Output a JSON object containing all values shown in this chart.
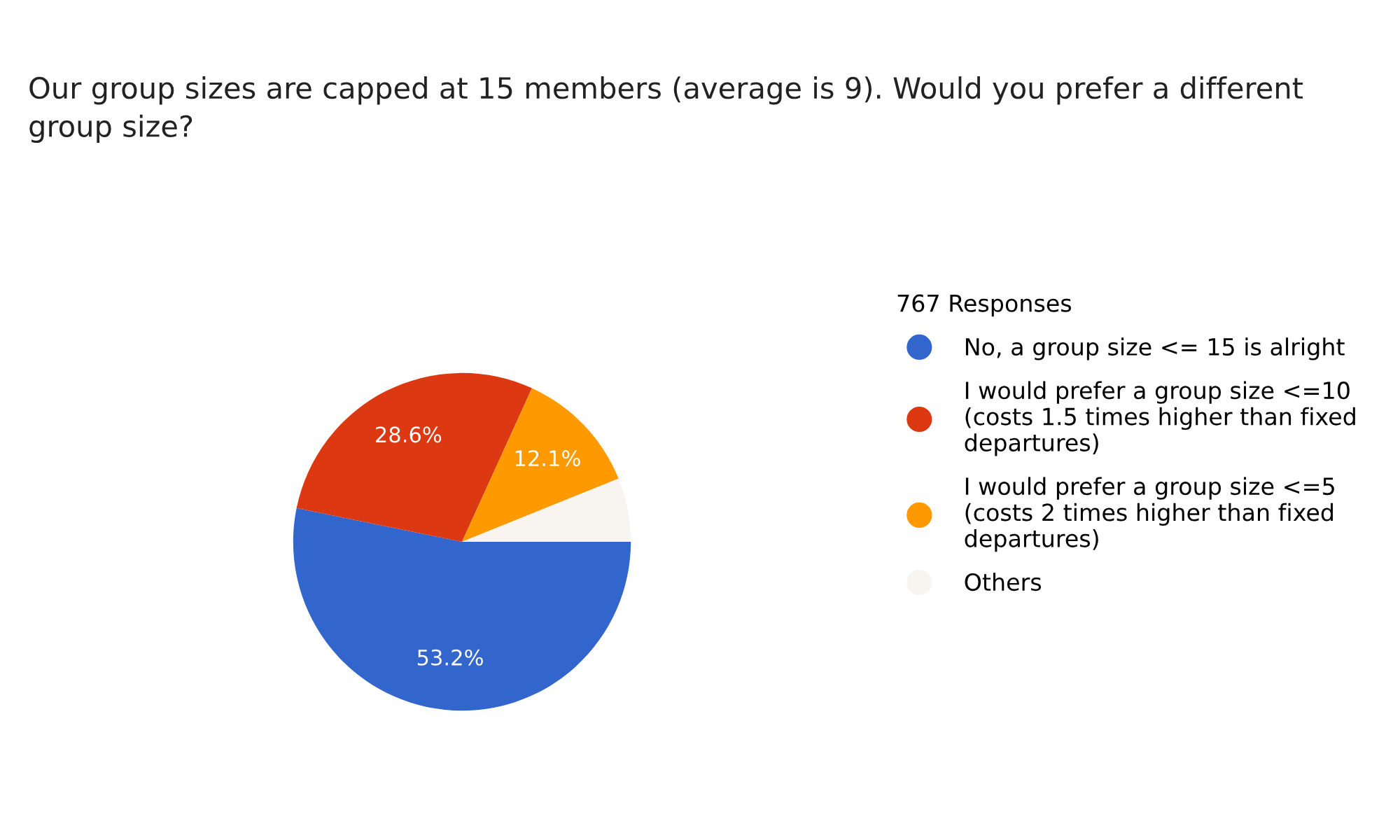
{
  "chart_data": {
    "type": "pie",
    "title": "Our group sizes are capped at 15 members (average is 9). Would you prefer a different\ngroup size?",
    "legend_title": "767 Responses",
    "categories": [
      "No, a group size <= 15 is alright",
      "I would prefer a group size <=10\n(costs 1.5 times higher than fixed\ndepartures)",
      "I would prefer a group size <=5\n(costs 2 times higher than fixed\ndepartures)",
      "Others"
    ],
    "values": [
      53.2,
      28.6,
      12.1,
      6.1
    ],
    "colors": [
      "#3366cc",
      "#dc3912",
      "#ff9900",
      "#f8f5f0"
    ],
    "value_labels": [
      "53.2%",
      "28.6%",
      "12.1%",
      null
    ],
    "legend": "right"
  }
}
